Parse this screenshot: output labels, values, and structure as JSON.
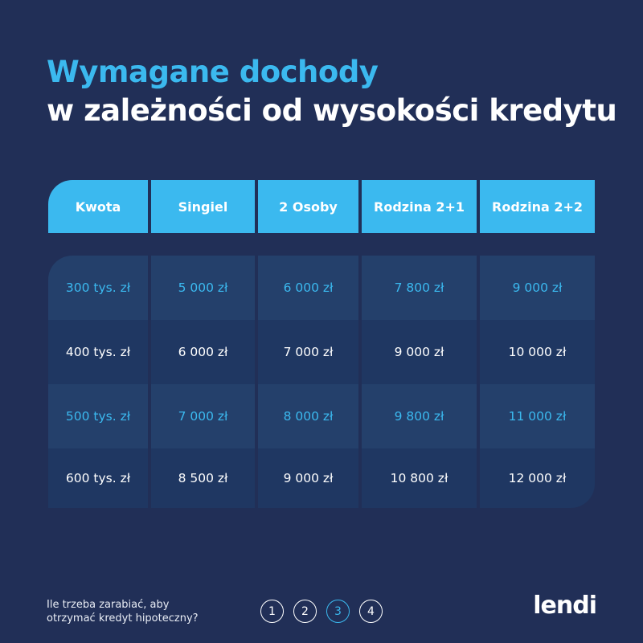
{
  "title_line1": "Wymagane dochody",
  "title_line2": "w zależności od wysokości kredytu",
  "table": {
    "headers": [
      "Kwota",
      "Singiel",
      "2 Osoby",
      "Rodzina 2+1",
      "Rodzina 2+2"
    ],
    "rows": [
      [
        "300 tys. zł",
        "5 000 zł",
        "6 000 zł",
        "7 800 zł",
        "9 000 zł"
      ],
      [
        "400 tys. zł",
        "6 000 zł",
        "7 000 zł",
        "9 000 zł",
        "10 000 zł"
      ],
      [
        "500 tys. zł",
        "7 000 zł",
        "8 000 zł",
        "9 800 zł",
        "11 000 zł"
      ],
      [
        "600 tys. zł",
        "8 500 zł",
        "9 000 zł",
        "10 800 zł",
        "12 000 zł"
      ]
    ]
  },
  "footer": {
    "line1": "Ile trzeba zarabiać, aby",
    "line2": "otrzymać kredyt hipoteczny?",
    "steps": [
      "1",
      "2",
      "3",
      "4"
    ],
    "active_step": "3",
    "logo": "lendi"
  },
  "colors": {
    "background": "#212f57",
    "accent": "#3bb9ef"
  }
}
